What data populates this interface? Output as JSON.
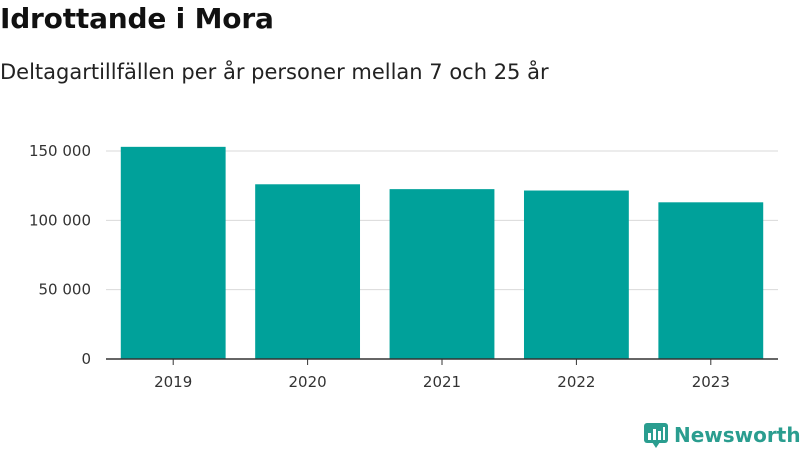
{
  "header": {
    "title": "Idrottande i Mora",
    "subtitle": "Deltagartillfällen per år personer mellan 7 och 25 år"
  },
  "brand": {
    "name": "Newsworthy",
    "color": "#2a9d8f"
  },
  "colors": {
    "bar": "#00a19a",
    "grid": "#d9d9d9",
    "axis": "#333333"
  },
  "chart_data": {
    "type": "bar",
    "categories": [
      "2019",
      "2020",
      "2021",
      "2022",
      "2023"
    ],
    "values": [
      153000,
      126000,
      122500,
      121500,
      113000
    ],
    "ylim": [
      0,
      150000
    ],
    "yticks": [
      0,
      50000,
      100000,
      150000
    ],
    "ytick_labels": [
      "0",
      "50 000",
      "100 000",
      "150 000"
    ],
    "grid": true
  }
}
